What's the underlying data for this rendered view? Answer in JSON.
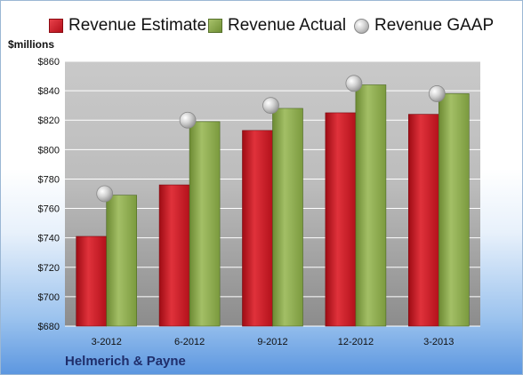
{
  "legend": {
    "estimate": "Revenue Estimate",
    "actual": "Revenue Actual",
    "gaap": "Revenue GAAP"
  },
  "unit_label": "$millions",
  "footer_label": "Helmerich & Payne",
  "colors": {
    "estimate": "#c8141f",
    "actual": "#8aa84c",
    "gaap": "#bfbfbf"
  },
  "chart_data": {
    "type": "bar",
    "categories": [
      "3-2012",
      "6-2012",
      "9-2012",
      "12-2012",
      "3-2013"
    ],
    "series": [
      {
        "name": "Revenue Estimate",
        "values": [
          741,
          776,
          813,
          825,
          824
        ]
      },
      {
        "name": "Revenue Actual",
        "values": [
          769,
          819,
          828,
          844,
          838
        ]
      },
      {
        "name": "Revenue GAAP",
        "type": "scatter",
        "values": [
          770,
          820,
          830,
          845,
          838
        ]
      }
    ],
    "ylabel": "$millions",
    "ylim": [
      680,
      860
    ],
    "yticks": [
      680,
      700,
      720,
      740,
      760,
      780,
      800,
      820,
      840,
      860
    ],
    "ytick_labels": [
      "$680",
      "$700",
      "$720",
      "$740",
      "$760",
      "$780",
      "$800",
      "$820",
      "$840",
      "$860"
    ],
    "grid": true,
    "legend_position": "top"
  }
}
